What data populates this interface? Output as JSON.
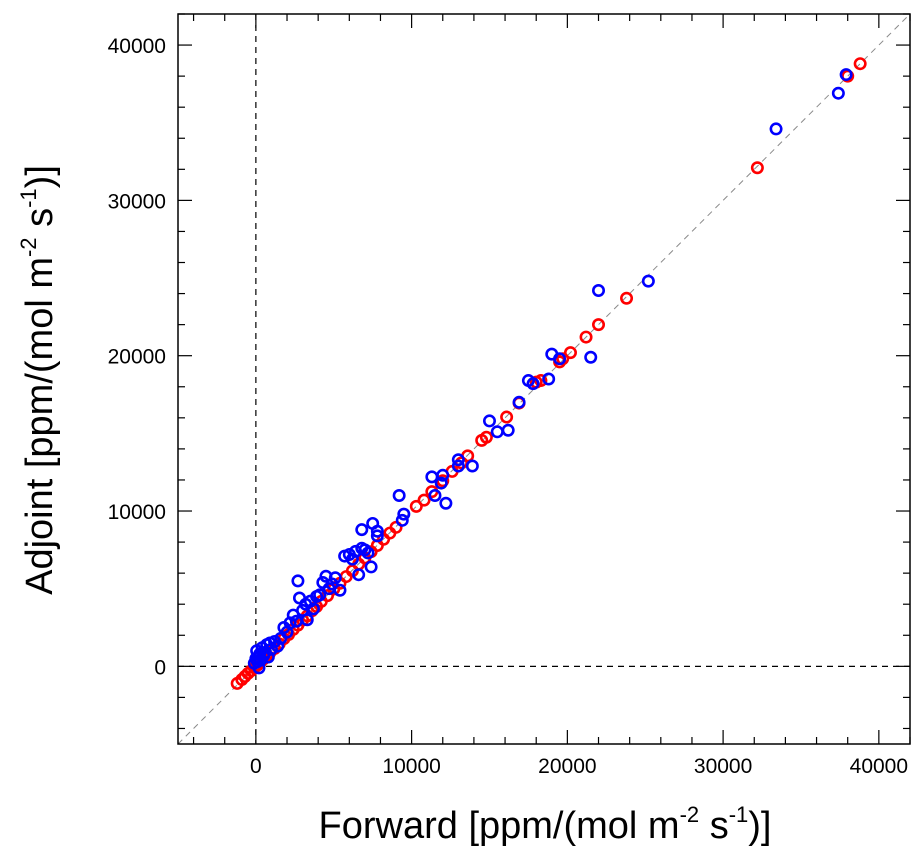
{
  "chart_data": {
    "type": "scatter",
    "xlabel": {
      "pre": "Forward [ppm/(mol m",
      "sup1": "-2",
      "mid": " s",
      "sup2": "-1",
      "post": ")]"
    },
    "ylabel": {
      "pre": "Adjoint [ppm/(mol m",
      "sup1": "-2",
      "mid": " s",
      "sup2": "-1",
      "post": ")]"
    },
    "xlim": [
      -5000,
      42000
    ],
    "ylim": [
      -5000,
      42000
    ],
    "xticks": [
      0,
      10000,
      20000,
      30000,
      40000
    ],
    "yticks": [
      0,
      10000,
      20000,
      30000,
      40000
    ],
    "zero_lines": true,
    "identity_line": true,
    "grid": false,
    "series": [
      {
        "color": "#ff0000",
        "points": [
          [
            -1200,
            -1100
          ],
          [
            -900,
            -850
          ],
          [
            -700,
            -650
          ],
          [
            -500,
            -450
          ],
          [
            -300,
            -280
          ],
          [
            -100,
            -90
          ],
          [
            100,
            80
          ],
          [
            300,
            280
          ],
          [
            500,
            480
          ],
          [
            700,
            660
          ],
          [
            900,
            880
          ],
          [
            1200,
            1150
          ],
          [
            1500,
            1450
          ],
          [
            1800,
            1780
          ],
          [
            2100,
            2050
          ],
          [
            2400,
            2380
          ],
          [
            2700,
            2650
          ],
          [
            3000,
            2980
          ],
          [
            3300,
            3250
          ],
          [
            3600,
            3580
          ],
          [
            3900,
            3850
          ],
          [
            4200,
            4180
          ],
          [
            4600,
            4550
          ],
          [
            5000,
            4980
          ],
          [
            5400,
            5350
          ],
          [
            5800,
            5780
          ],
          [
            6200,
            6150
          ],
          [
            6600,
            6580
          ],
          [
            7000,
            6980
          ],
          [
            7400,
            7380
          ],
          [
            7800,
            7780
          ],
          [
            8200,
            8180
          ],
          [
            8600,
            8580
          ],
          [
            9000,
            8950
          ],
          [
            10300,
            10300
          ],
          [
            10800,
            10700
          ],
          [
            11300,
            11250
          ],
          [
            12000,
            11950
          ],
          [
            12600,
            12550
          ],
          [
            13200,
            13100
          ],
          [
            13600,
            13550
          ],
          [
            14500,
            14550
          ],
          [
            14800,
            14750
          ],
          [
            16100,
            16050
          ],
          [
            16900,
            16950
          ],
          [
            18000,
            18300
          ],
          [
            18300,
            18400
          ],
          [
            19500,
            19600
          ],
          [
            19700,
            19800
          ],
          [
            20200,
            20200
          ],
          [
            21200,
            21200
          ],
          [
            22000,
            22000
          ],
          [
            23800,
            23700
          ],
          [
            32200,
            32100
          ],
          [
            38000,
            38000
          ],
          [
            38800,
            38800
          ]
        ]
      },
      {
        "color": "#0000ff",
        "points": [
          [
            -100,
            200
          ],
          [
            0,
            500
          ],
          [
            50,
            1000
          ],
          [
            100,
            300
          ],
          [
            150,
            600
          ],
          [
            200,
            -100
          ],
          [
            250,
            800
          ],
          [
            300,
            400
          ],
          [
            400,
            1200
          ],
          [
            500,
            700
          ],
          [
            600,
            900
          ],
          [
            700,
            1400
          ],
          [
            800,
            600
          ],
          [
            900,
            1500
          ],
          [
            1000,
            1100
          ],
          [
            1200,
            1600
          ],
          [
            1400,
            1300
          ],
          [
            1600,
            1800
          ],
          [
            1800,
            2500
          ],
          [
            2000,
            2200
          ],
          [
            2200,
            2800
          ],
          [
            2400,
            3300
          ],
          [
            2600,
            2900
          ],
          [
            2700,
            5500
          ],
          [
            2800,
            4400
          ],
          [
            3000,
            3600
          ],
          [
            3200,
            4000
          ],
          [
            3300,
            3000
          ],
          [
            3500,
            4200
          ],
          [
            3700,
            3700
          ],
          [
            3900,
            4500
          ],
          [
            4100,
            4600
          ],
          [
            4300,
            5400
          ],
          [
            4500,
            5800
          ],
          [
            4700,
            5000
          ],
          [
            4900,
            5300
          ],
          [
            5100,
            5700
          ],
          [
            5400,
            4900
          ],
          [
            5700,
            7100
          ],
          [
            6000,
            7200
          ],
          [
            6200,
            6900
          ],
          [
            6400,
            7400
          ],
          [
            6600,
            5900
          ],
          [
            6800,
            7600
          ],
          [
            6800,
            8800
          ],
          [
            7000,
            7500
          ],
          [
            7200,
            7300
          ],
          [
            7400,
            6400
          ],
          [
            7500,
            9200
          ],
          [
            7800,
            8700
          ],
          [
            7800,
            8400
          ],
          [
            9200,
            11000
          ],
          [
            9400,
            9400
          ],
          [
            9500,
            9800
          ],
          [
            11300,
            12200
          ],
          [
            11500,
            11000
          ],
          [
            11900,
            11800
          ],
          [
            12000,
            12300
          ],
          [
            12200,
            10500
          ],
          [
            13000,
            12900
          ],
          [
            13000,
            13300
          ],
          [
            13900,
            12900
          ],
          [
            15000,
            15800
          ],
          [
            15500,
            15100
          ],
          [
            16200,
            15200
          ],
          [
            16900,
            17000
          ],
          [
            17500,
            18400
          ],
          [
            17800,
            18200
          ],
          [
            18800,
            18500
          ],
          [
            19000,
            20100
          ],
          [
            19500,
            19800
          ],
          [
            21500,
            19900
          ],
          [
            22000,
            24200
          ],
          [
            25200,
            24800
          ],
          [
            33400,
            34600
          ],
          [
            37400,
            36900
          ],
          [
            37900,
            38100
          ]
        ]
      }
    ]
  }
}
